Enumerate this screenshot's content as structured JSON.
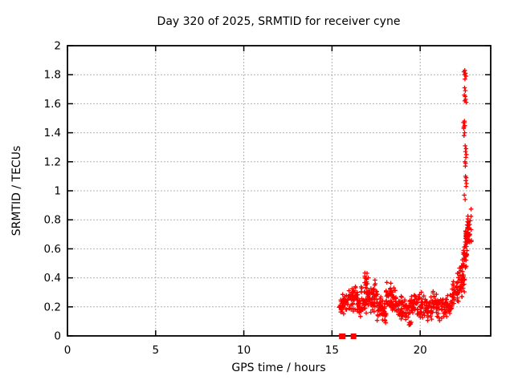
{
  "chart_data": {
    "type": "scatter",
    "title": "Day 320 of 2025, SRMTID for receiver cyne",
    "xlabel": "GPS time / hours",
    "ylabel": "SRMTID / TECUs",
    "xlim": [
      0,
      24
    ],
    "ylim": [
      0,
      2
    ],
    "x_ticks": [
      0,
      5,
      10,
      15,
      20
    ],
    "x_tick_labels": [
      "0",
      "5",
      "10",
      "15",
      "20"
    ],
    "y_tick_values": [
      0,
      0.2,
      0.4,
      0.6,
      0.8,
      1,
      1.2,
      1.4,
      1.6,
      1.8,
      2
    ],
    "y_tick_labels": [
      "0",
      "0.2",
      "0.4",
      "0.6",
      "0.8",
      "1",
      "1.2",
      "1.4",
      "1.6",
      "1.8",
      "2"
    ],
    "grid": true,
    "legend": null,
    "marker": "plus",
    "colors": {
      "points": "#ff0000",
      "grid": "#b0b0b0",
      "frame": "#000000",
      "background": "#ffffff"
    },
    "data_extent": {
      "x": [
        15.4,
        22.95
      ],
      "y": [
        0,
        1.83
      ]
    },
    "seed": 320,
    "bands_format": "[t_start_hours, t_end_hours, y_min_TECUs, y_max_TECUs, n_points]",
    "bands": [
      [
        15.4,
        15.65,
        0.14,
        0.28,
        16
      ],
      [
        15.6,
        15.9,
        0.13,
        0.33,
        22
      ],
      [
        15.85,
        16.2,
        0.15,
        0.34,
        22
      ],
      [
        16.15,
        16.45,
        0.16,
        0.38,
        24
      ],
      [
        16.4,
        16.7,
        0.12,
        0.31,
        24
      ],
      [
        16.65,
        16.95,
        0.14,
        0.41,
        26
      ],
      [
        16.85,
        17.1,
        0.18,
        0.46,
        22
      ],
      [
        17.05,
        17.35,
        0.12,
        0.35,
        24
      ],
      [
        17.3,
        17.55,
        0.15,
        0.44,
        22
      ],
      [
        17.5,
        17.8,
        0.1,
        0.31,
        24
      ],
      [
        17.75,
        18.1,
        0.07,
        0.26,
        26
      ],
      [
        18.05,
        18.4,
        0.14,
        0.38,
        26
      ],
      [
        18.35,
        18.65,
        0.16,
        0.36,
        24
      ],
      [
        18.6,
        18.95,
        0.11,
        0.3,
        24
      ],
      [
        18.9,
        19.2,
        0.08,
        0.31,
        24
      ],
      [
        19.15,
        19.5,
        0.05,
        0.26,
        26
      ],
      [
        19.45,
        19.8,
        0.1,
        0.33,
        26
      ],
      [
        19.75,
        20.1,
        0.08,
        0.32,
        24
      ],
      [
        20.05,
        20.4,
        0.1,
        0.3,
        24
      ],
      [
        20.35,
        20.65,
        0.08,
        0.26,
        22
      ],
      [
        20.6,
        20.95,
        0.12,
        0.34,
        24
      ],
      [
        20.9,
        21.25,
        0.1,
        0.28,
        24
      ],
      [
        21.2,
        21.55,
        0.12,
        0.3,
        24
      ],
      [
        21.5,
        21.85,
        0.14,
        0.33,
        26
      ],
      [
        21.8,
        22.15,
        0.15,
        0.4,
        28
      ],
      [
        22.1,
        22.38,
        0.22,
        0.5,
        26
      ],
      [
        22.3,
        22.55,
        0.3,
        0.58,
        24
      ],
      [
        22.45,
        22.7,
        0.42,
        0.72,
        26
      ],
      [
        22.55,
        22.8,
        0.55,
        0.85,
        28
      ],
      [
        22.7,
        22.92,
        0.62,
        0.88,
        20
      ]
    ],
    "spike_points": [
      [
        22.48,
        1.82
      ],
      [
        22.53,
        1.83
      ],
      [
        22.51,
        1.8
      ],
      [
        22.57,
        1.81
      ],
      [
        22.6,
        1.79
      ],
      [
        22.54,
        1.77
      ],
      [
        22.52,
        1.71
      ],
      [
        22.56,
        1.69
      ],
      [
        22.5,
        1.66
      ],
      [
        22.55,
        1.65
      ],
      [
        22.58,
        1.63
      ],
      [
        22.53,
        1.62
      ],
      [
        22.61,
        1.61
      ],
      [
        22.45,
        1.47
      ],
      [
        22.5,
        1.47
      ],
      [
        22.48,
        1.44
      ],
      [
        22.53,
        1.45
      ],
      [
        22.51,
        1.48
      ],
      [
        22.47,
        1.43
      ],
      [
        22.52,
        1.4
      ],
      [
        22.49,
        1.38
      ],
      [
        22.55,
        1.31
      ],
      [
        22.6,
        1.29
      ],
      [
        22.57,
        1.27
      ],
      [
        22.62,
        1.25
      ],
      [
        22.59,
        1.23
      ],
      [
        22.54,
        1.2
      ],
      [
        22.58,
        1.19
      ],
      [
        22.56,
        1.17
      ],
      [
        22.57,
        1.1
      ],
      [
        22.61,
        1.09
      ],
      [
        22.59,
        1.07
      ],
      [
        22.63,
        1.05
      ],
      [
        22.6,
        1.03
      ],
      [
        22.5,
        0.97
      ],
      [
        22.55,
        0.94
      ],
      [
        22.9,
        0.65
      ]
    ],
    "zero_points": [
      [
        15.56,
        0
      ],
      [
        15.61,
        0
      ],
      [
        16.22,
        0
      ]
    ]
  }
}
